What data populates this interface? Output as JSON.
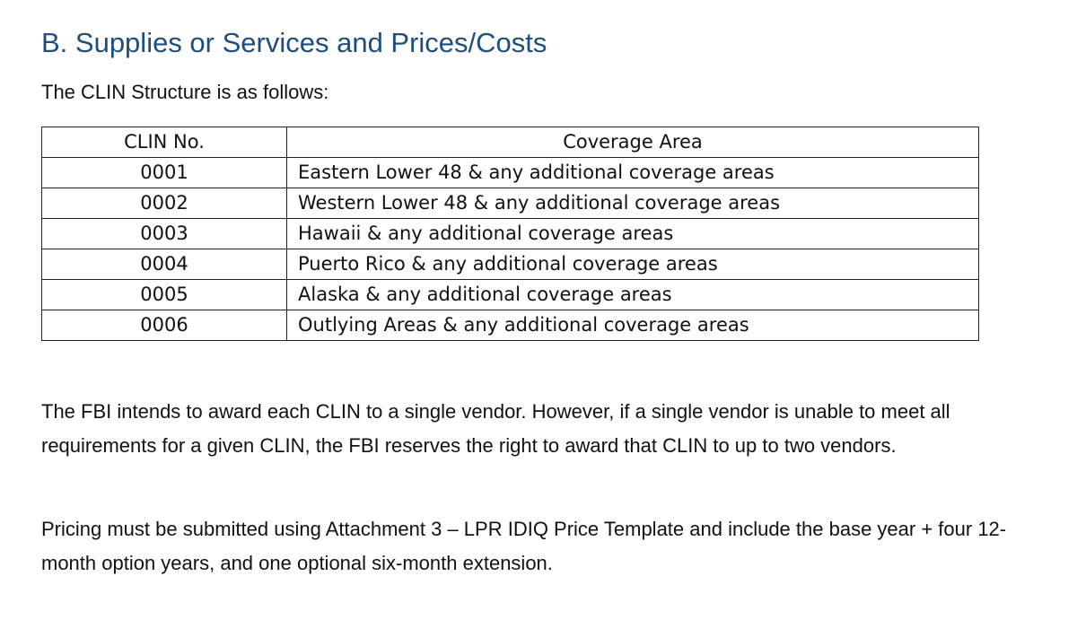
{
  "heading": "B. Supplies or Services and Prices/Costs",
  "intro": "The CLIN Structure is as follows:",
  "table": {
    "headers": [
      "CLIN No.",
      "Coverage Area"
    ],
    "rows": [
      {
        "clin": "0001",
        "area": "Eastern Lower 48 & any additional coverage areas"
      },
      {
        "clin": "0002",
        "area": "Western Lower 48 & any additional coverage areas"
      },
      {
        "clin": "0003",
        "area": "Hawaii & any additional coverage areas"
      },
      {
        "clin": "0004",
        "area": "Puerto Rico & any additional coverage areas"
      },
      {
        "clin": "0005",
        "area": "Alaska & any additional coverage areas"
      },
      {
        "clin": "0006",
        "area": "Outlying Areas & any additional coverage areas"
      }
    ]
  },
  "paragraphs": [
    "The FBI intends to award each CLIN to a single vendor. However, if a single vendor is unable to meet all requirements for a given CLIN, the FBI reserves the right to award that CLIN to up to two vendors.",
    "Pricing must be submitted using Attachment 3 – LPR IDIQ Price Template and include the base year + four 12-month option years, and one optional six-month extension."
  ],
  "colors": {
    "heading": "#1e4e79",
    "text": "#111111",
    "border": "#222222"
  }
}
